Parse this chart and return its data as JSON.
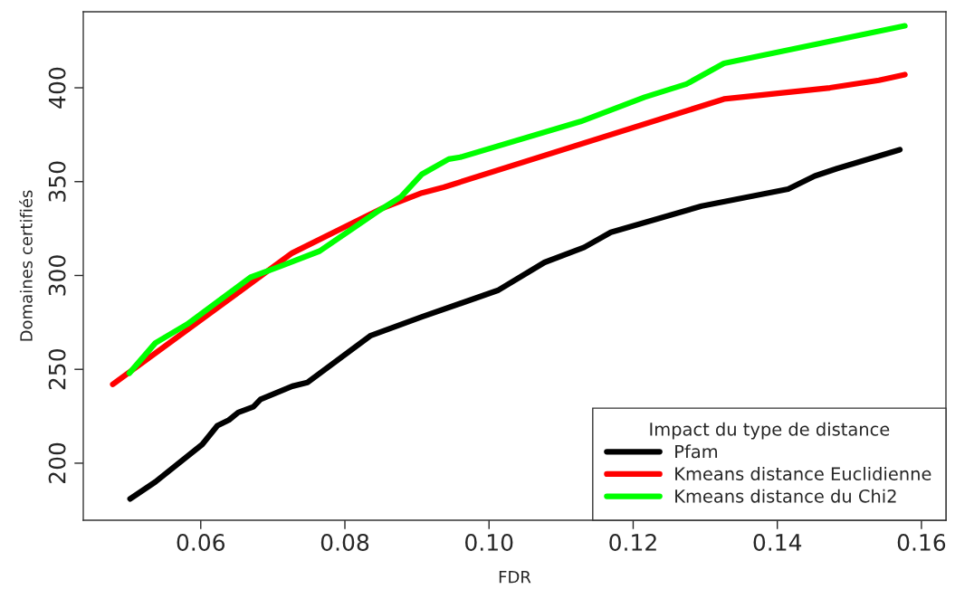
{
  "chart_data": {
    "type": "line",
    "xlabel": "FDR",
    "ylabel": "Domaines certifiés",
    "legend_title": "Impact du type de distance",
    "legend": "bottom right",
    "grid": false,
    "marker": "none",
    "line_style": "solid",
    "xlim": [
      0.0437,
      0.1634
    ],
    "ylim": [
      169.6,
      440.5
    ],
    "xticks": [
      {
        "value": 0.06,
        "label": "0.06"
      },
      {
        "value": 0.08,
        "label": "0.08"
      },
      {
        "value": 0.1,
        "label": "0.10"
      },
      {
        "value": 0.12,
        "label": "0.12"
      },
      {
        "value": 0.14,
        "label": "0.14"
      },
      {
        "value": 0.16,
        "label": "0.16"
      }
    ],
    "yticks": [
      200,
      250,
      300,
      350,
      400
    ],
    "series": [
      {
        "name": "Pfam",
        "color": "#000000",
        "x": [
          0.0502,
          0.0537,
          0.0602,
          0.0623,
          0.0639,
          0.0652,
          0.0673,
          0.0683,
          0.0727,
          0.0748,
          0.0836,
          0.0907,
          0.1012,
          0.1077,
          0.1132,
          0.1169,
          0.1295,
          0.1415,
          0.1452,
          0.1483,
          0.157
        ],
        "values": [
          181,
          190,
          210,
          220,
          223,
          227,
          230,
          234,
          241,
          243,
          268,
          278,
          292,
          307,
          315,
          323,
          337,
          346,
          353,
          357,
          367
        ]
      },
      {
        "name": "Kmeans distance Euclidienne",
        "color": "#ff0000",
        "x": [
          0.0478,
          0.0727,
          0.0853,
          0.0907,
          0.0937,
          0.1326,
          0.1473,
          0.1541,
          0.1577
        ],
        "values": [
          242,
          312,
          336,
          344,
          347,
          394,
          400,
          404,
          407
        ]
      },
      {
        "name": "Kmeans distance du Chi2",
        "color": "#00ff00",
        "x": [
          0.0501,
          0.0537,
          0.0581,
          0.0669,
          0.0711,
          0.0765,
          0.0845,
          0.0878,
          0.0907,
          0.0944,
          0.096,
          0.1127,
          0.1216,
          0.1274,
          0.1326,
          0.1577
        ],
        "values": [
          248,
          264,
          274,
          299,
          305,
          313,
          334,
          342,
          354,
          362,
          363,
          382,
          395,
          402,
          413,
          433
        ]
      }
    ]
  }
}
